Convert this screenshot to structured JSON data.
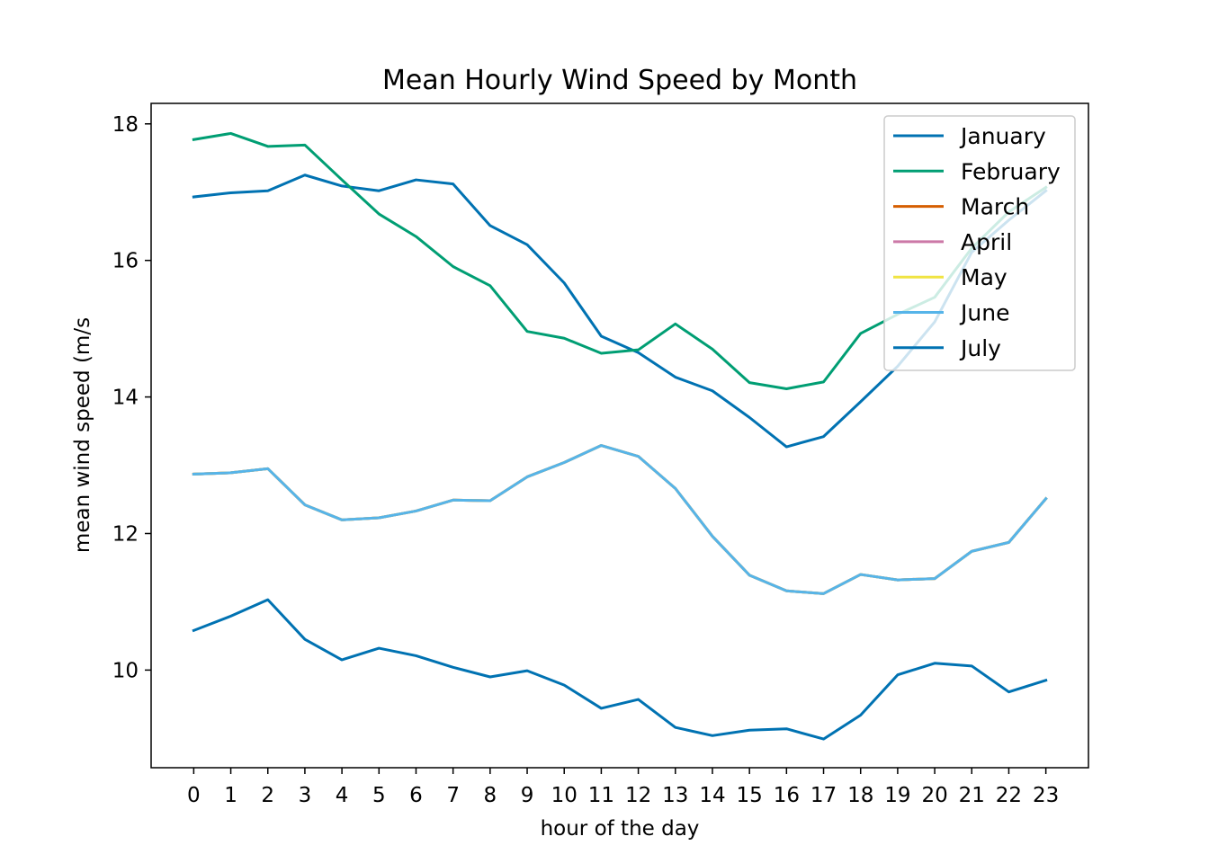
{
  "chart_data": {
    "type": "line",
    "title": "Mean Hourly Wind Speed by Month",
    "xlabel": "hour of the day",
    "ylabel": "mean wind speed (m/s",
    "x": [
      0,
      1,
      2,
      3,
      4,
      5,
      6,
      7,
      8,
      9,
      10,
      11,
      12,
      13,
      14,
      15,
      16,
      17,
      18,
      19,
      20,
      21,
      22,
      23
    ],
    "xticks": [
      "0",
      "1",
      "2",
      "3",
      "4",
      "5",
      "6",
      "7",
      "8",
      "9",
      "10",
      "11",
      "12",
      "13",
      "14",
      "15",
      "16",
      "17",
      "18",
      "19",
      "20",
      "21",
      "22",
      "23"
    ],
    "xlim": [
      -1.15,
      24.15
    ],
    "ylim": [
      8.57,
      18.3
    ],
    "yticks": [
      "10",
      "12",
      "14",
      "16",
      "18"
    ],
    "grid": false,
    "legend_position": "upper right",
    "series": [
      {
        "name": "January",
        "color": "#0072B2",
        "values": [
          16.93,
          16.99,
          17.02,
          17.25,
          17.09,
          17.02,
          17.18,
          17.12,
          16.51,
          16.23,
          15.67,
          14.89,
          14.65,
          14.29,
          14.09,
          13.7,
          13.27,
          13.42,
          13.93,
          14.45,
          15.1,
          16.12,
          16.59,
          17.02
        ]
      },
      {
        "name": "February",
        "color": "#009E73",
        "values": [
          17.77,
          17.86,
          17.67,
          17.69,
          17.18,
          16.68,
          16.35,
          15.91,
          15.63,
          14.96,
          14.86,
          14.64,
          14.69,
          15.07,
          14.7,
          14.21,
          14.12,
          14.22,
          14.93,
          15.21,
          15.46,
          16.18,
          16.71,
          17.07
        ]
      },
      {
        "name": "March",
        "color": "#D55E00",
        "values": [
          12.87,
          12.89,
          12.95,
          12.42,
          12.2,
          12.23,
          12.33,
          12.49,
          12.48,
          12.83,
          13.04,
          13.29,
          13.13,
          12.66,
          11.96,
          11.39,
          11.16,
          11.12,
          11.4,
          11.32,
          11.34,
          11.74,
          11.87,
          12.51
        ]
      },
      {
        "name": "April",
        "color": "#CC79A7",
        "values": [
          12.87,
          12.89,
          12.95,
          12.42,
          12.2,
          12.23,
          12.33,
          12.49,
          12.48,
          12.83,
          13.04,
          13.29,
          13.13,
          12.66,
          11.96,
          11.39,
          11.16,
          11.12,
          11.4,
          11.32,
          11.34,
          11.74,
          11.87,
          12.51
        ]
      },
      {
        "name": "May",
        "color": "#F0E442",
        "values": [
          12.87,
          12.89,
          12.95,
          12.42,
          12.2,
          12.23,
          12.33,
          12.49,
          12.48,
          12.83,
          13.04,
          13.29,
          13.13,
          12.66,
          11.96,
          11.39,
          11.16,
          11.12,
          11.4,
          11.32,
          11.34,
          11.74,
          11.87,
          12.51
        ]
      },
      {
        "name": "June",
        "color": "#56B4E9",
        "values": [
          12.87,
          12.89,
          12.95,
          12.42,
          12.2,
          12.23,
          12.33,
          12.49,
          12.48,
          12.83,
          13.04,
          13.29,
          13.13,
          12.66,
          11.96,
          11.39,
          11.16,
          11.12,
          11.4,
          11.32,
          11.34,
          11.74,
          11.87,
          12.51
        ]
      },
      {
        "name": "July",
        "color": "#0072B2",
        "values": [
          10.58,
          10.79,
          11.03,
          10.45,
          10.15,
          10.32,
          10.21,
          10.04,
          9.9,
          9.99,
          9.78,
          9.44,
          9.57,
          9.16,
          9.04,
          9.12,
          9.14,
          8.99,
          9.34,
          9.93,
          10.1,
          10.06,
          9.68,
          9.85
        ]
      }
    ]
  }
}
